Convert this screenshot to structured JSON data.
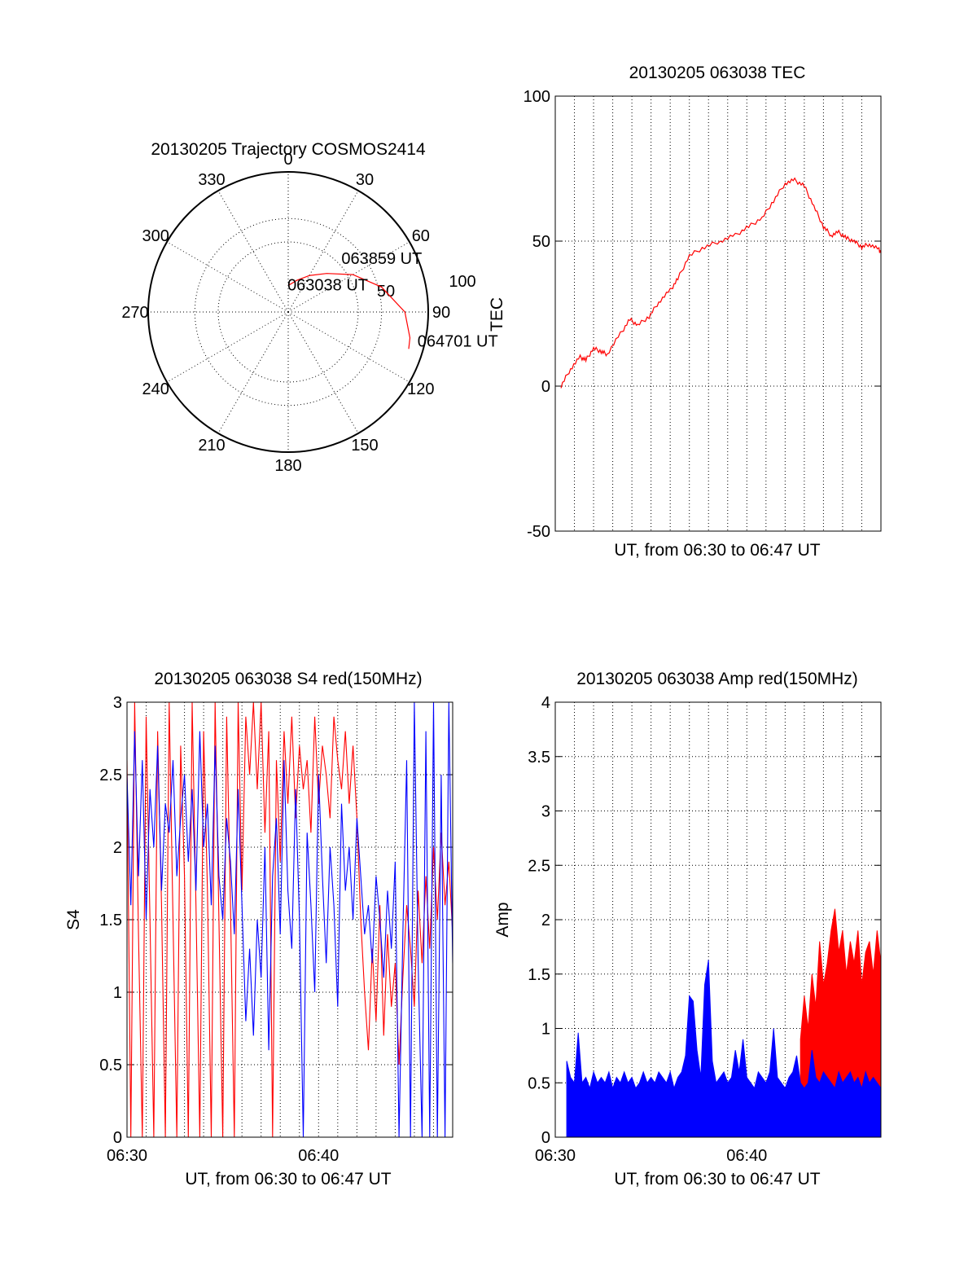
{
  "chart_data": [
    {
      "type": "polar",
      "title": "20130205 Trajectory COSMOS2414",
      "azimuth_labels": [
        "0",
        "30",
        "60",
        "90",
        "120",
        "150",
        "180",
        "210",
        "240",
        "270",
        "300",
        "330"
      ],
      "radial_labels": [
        "50",
        "100"
      ],
      "grid": true,
      "trajectory_color": "#ff0000",
      "trajectory": [
        {
          "azimuth": 0,
          "elevation": 73
        },
        {
          "azimuth": 15,
          "elevation": 69
        },
        {
          "azimuth": 30,
          "elevation": 63
        },
        {
          "azimuth": 45,
          "elevation": 55
        },
        {
          "azimuth": 60,
          "elevation": 42
        },
        {
          "azimuth": 75,
          "elevation": 28
        },
        {
          "azimuth": 90,
          "elevation": 15
        },
        {
          "azimuth": 102,
          "elevation": 10
        },
        {
          "azimuth": 107,
          "elevation": 9
        }
      ],
      "annotations": [
        {
          "text": "063038 UT",
          "azimuth": -2,
          "elevation": 76
        },
        {
          "text": "063859 UT",
          "azimuth": 48,
          "elevation": 44
        },
        {
          "text": "064701 UT",
          "azimuth": 105,
          "elevation": 4
        }
      ]
    },
    {
      "type": "line",
      "title": "20130205 063038 TEC",
      "xlabel": "UT, from 06:30 to 06:47 UT",
      "ylabel": "TEC",
      "xlim": [
        0,
        17
      ],
      "ylim": [
        -50,
        100
      ],
      "yticks": [
        "-50",
        "0",
        "50",
        "100"
      ],
      "grid": true,
      "line_color": "#ff0000",
      "x": [
        0.3,
        0.8,
        1.3,
        1.6,
        2.0,
        2.4,
        2.7,
        3.4,
        3.9,
        4.3,
        4.9,
        5.4,
        6.0,
        6.4,
        7.0,
        7.8,
        8.6,
        9.4,
        10.1,
        10.8,
        11.4,
        12.0,
        12.5,
        13.0,
        13.5,
        14.0,
        14.4,
        14.8,
        15.2,
        15.6,
        16.0,
        16.4,
        16.9,
        17.0
      ],
      "y": [
        0,
        6,
        10,
        9,
        13,
        12,
        11,
        18,
        23,
        21,
        24,
        29,
        33,
        37,
        45,
        48,
        50,
        52,
        55,
        58,
        64,
        70,
        71,
        69,
        62,
        55,
        52,
        53,
        51,
        50,
        48,
        49,
        47,
        46
      ]
    },
    {
      "type": "line",
      "title": "20130205 063038 S4 red(150MHz)",
      "xlabel": "UT, from 06:30 to 06:47 UT",
      "ylabel": "S4",
      "xlim": [
        0,
        17
      ],
      "xticks": [
        "06:30",
        "06:40"
      ],
      "ylim": [
        0,
        3
      ],
      "yticks": [
        "0",
        "0.5",
        "1",
        "1.5",
        "2",
        "2.5",
        "3"
      ],
      "grid": true,
      "series": [
        {
          "color": "#ff0000",
          "x": [
            0.0,
            0.2,
            0.4,
            0.6,
            0.8,
            1.0,
            1.2,
            1.4,
            1.6,
            1.8,
            2.0,
            2.2,
            2.4,
            2.6,
            2.8,
            3.0,
            3.2,
            3.4,
            3.6,
            3.8,
            4.0,
            4.2,
            4.4,
            4.6,
            4.8,
            5.0,
            5.2,
            5.4,
            5.6,
            5.8,
            6.0,
            6.2,
            6.4,
            6.6,
            6.8,
            7.0,
            7.2,
            7.4,
            7.6,
            7.8,
            8.0,
            8.2,
            8.4,
            8.6,
            8.8,
            9.0,
            9.2,
            9.4,
            9.6,
            9.8,
            10.0,
            10.2,
            10.4,
            10.6,
            10.8,
            11.0,
            11.2,
            11.4,
            11.6,
            11.8,
            12.0,
            12.2,
            12.4,
            12.6,
            12.8,
            13.0,
            13.2,
            13.4,
            13.6,
            13.8,
            14.0,
            14.2,
            14.4,
            14.6,
            14.8,
            15.0,
            15.2,
            15.4,
            15.6,
            15.8,
            16.0,
            16.2,
            16.4,
            16.6,
            16.8,
            17.0
          ],
          "y": [
            2.6,
            0.0,
            3.0,
            1.4,
            0.0,
            2.9,
            1.5,
            0.0,
            2.8,
            1.6,
            0.0,
            3.0,
            1.5,
            0.0,
            2.7,
            1.8,
            0.0,
            3.0,
            1.6,
            0.0,
            2.8,
            1.7,
            0.0,
            3.0,
            1.5,
            0.0,
            2.9,
            1.6,
            0.0,
            3.0,
            1.7,
            2.9,
            2.5,
            3.0,
            2.4,
            3.0,
            2.1,
            2.8,
            0.0,
            2.6,
            1.9,
            2.8,
            2.3,
            2.9,
            2.2,
            2.7,
            2.4,
            2.6,
            2.1,
            2.9,
            2.3,
            2.7,
            2.5,
            2.2,
            2.9,
            2.6,
            2.4,
            2.8,
            2.3,
            2.7,
            2.2,
            1.5,
            1.0,
            0.6,
            1.3,
            0.8,
            1.6,
            0.7,
            1.4,
            0.9,
            1.2,
            0.5,
            1.1,
            1.6,
            1.3,
            0.9,
            1.7,
            1.2,
            1.8,
            1.3,
            2.0,
            1.5,
            2.1,
            1.6,
            1.9,
            1.4
          ]
        },
        {
          "color": "#0000ff",
          "x": [
            0.0,
            0.2,
            0.4,
            0.6,
            0.8,
            1.0,
            1.2,
            1.4,
            1.6,
            1.8,
            2.0,
            2.2,
            2.4,
            2.6,
            2.8,
            3.0,
            3.2,
            3.4,
            3.6,
            3.8,
            4.0,
            4.2,
            4.4,
            4.6,
            4.8,
            5.0,
            5.2,
            5.4,
            5.6,
            5.8,
            6.0,
            6.2,
            6.4,
            6.6,
            6.8,
            7.0,
            7.2,
            7.4,
            7.6,
            7.8,
            8.0,
            8.2,
            8.4,
            8.6,
            8.8,
            9.0,
            9.2,
            9.4,
            9.6,
            9.8,
            10.0,
            10.2,
            10.4,
            10.6,
            10.8,
            11.0,
            11.2,
            11.4,
            11.6,
            11.8,
            12.0,
            12.2,
            12.4,
            12.6,
            12.8,
            13.0,
            13.2,
            13.4,
            13.6,
            13.8,
            14.0,
            14.2,
            14.4,
            14.6,
            14.8,
            15.0,
            15.2,
            15.4,
            15.6,
            15.8,
            16.0,
            16.2,
            16.4,
            16.6,
            16.8,
            17.0
          ],
          "y": [
            2.5,
            1.6,
            2.8,
            1.8,
            2.6,
            1.5,
            2.4,
            2.0,
            2.7,
            1.7,
            2.3,
            2.1,
            2.6,
            1.8,
            2.2,
            2.5,
            1.9,
            2.4,
            1.7,
            2.8,
            2.0,
            2.3,
            1.6,
            2.7,
            1.8,
            1.5,
            2.2,
            1.9,
            1.4,
            2.4,
            1.6,
            0.8,
            1.3,
            0.7,
            1.5,
            1.1,
            2.0,
            0.6,
            1.8,
            2.2,
            1.4,
            2.6,
            1.7,
            1.3,
            2.4,
            1.5,
            0.0,
            2.1,
            1.6,
            1.0,
            2.5,
            1.8,
            1.2,
            2.0,
            1.6,
            0.9,
            2.3,
            1.7,
            2.0,
            1.5,
            2.2,
            1.8,
            1.4,
            1.6,
            1.2,
            1.8,
            1.5,
            1.1,
            1.7,
            1.3,
            1.9,
            0.0,
            1.4,
            2.6,
            0.0,
            3.0,
            1.2,
            0.0,
            2.8,
            0.0,
            3.0,
            0.0,
            2.5,
            0.0,
            3.0,
            1.2
          ]
        }
      ]
    },
    {
      "type": "area",
      "title": "20130205 063038 Amp red(150MHz)",
      "xlabel": "UT, from 06:30 to 06:47 UT",
      "ylabel": "Amp",
      "xlim": [
        0,
        17
      ],
      "xticks": [
        "06:30",
        "06:40"
      ],
      "ylim": [
        0,
        4
      ],
      "yticks": [
        "0",
        "0.5",
        "1",
        "1.5",
        "2",
        "2.5",
        "3",
        "3.5",
        "4"
      ],
      "grid": true,
      "series": [
        {
          "color": "#ff0000",
          "x": [
            12.8,
            13.0,
            13.2,
            13.4,
            13.6,
            13.8,
            14.0,
            14.2,
            14.4,
            14.6,
            14.8,
            15.0,
            15.2,
            15.4,
            15.6,
            15.8,
            16.0,
            16.2,
            16.4,
            16.6,
            16.8,
            17.0
          ],
          "y": [
            0.9,
            1.3,
            1.0,
            1.5,
            1.2,
            1.8,
            1.4,
            1.6,
            1.9,
            2.1,
            1.7,
            1.9,
            1.5,
            1.8,
            1.6,
            1.9,
            1.4,
            1.7,
            1.8,
            1.5,
            1.9,
            1.6
          ]
        },
        {
          "color": "#0000ff",
          "x": [
            0.6,
            0.8,
            1.0,
            1.2,
            1.4,
            1.6,
            1.8,
            2.0,
            2.2,
            2.4,
            2.6,
            2.8,
            3.0,
            3.2,
            3.4,
            3.6,
            3.8,
            4.0,
            4.2,
            4.4,
            4.6,
            4.8,
            5.0,
            5.2,
            5.4,
            5.6,
            5.8,
            6.0,
            6.2,
            6.4,
            6.6,
            6.8,
            7.0,
            7.2,
            7.4,
            7.6,
            7.8,
            8.0,
            8.2,
            8.4,
            8.6,
            8.8,
            9.0,
            9.2,
            9.4,
            9.6,
            9.8,
            10.0,
            10.2,
            10.4,
            10.6,
            10.8,
            11.0,
            11.2,
            11.4,
            11.6,
            11.8,
            12.0,
            12.2,
            12.4,
            12.6,
            12.8,
            13.0,
            13.2,
            13.4,
            13.6,
            13.8,
            14.0,
            14.2,
            14.4,
            14.6,
            14.8,
            15.0,
            15.2,
            15.4,
            15.6,
            15.8,
            16.0,
            16.2,
            16.4,
            16.6,
            16.8,
            17.0
          ],
          "y": [
            0.7,
            0.55,
            0.5,
            0.96,
            0.5,
            0.55,
            0.45,
            0.6,
            0.5,
            0.55,
            0.5,
            0.6,
            0.45,
            0.55,
            0.5,
            0.6,
            0.5,
            0.55,
            0.45,
            0.5,
            0.6,
            0.5,
            0.55,
            0.5,
            0.6,
            0.55,
            0.5,
            0.6,
            0.45,
            0.55,
            0.6,
            0.75,
            1.3,
            1.25,
            0.8,
            0.55,
            1.4,
            1.63,
            0.7,
            0.5,
            0.55,
            0.6,
            0.5,
            0.55,
            0.8,
            0.6,
            0.9,
            0.55,
            0.5,
            0.45,
            0.6,
            0.55,
            0.5,
            0.6,
            1.0,
            0.55,
            0.5,
            0.45,
            0.55,
            0.6,
            0.75,
            0.5,
            0.45,
            0.5,
            0.8,
            0.55,
            0.5,
            0.6,
            0.55,
            0.5,
            0.45,
            0.6,
            0.5,
            0.55,
            0.6,
            0.5,
            0.55,
            0.45,
            0.6,
            0.5,
            0.55,
            0.5,
            0.45
          ]
        }
      ]
    }
  ]
}
